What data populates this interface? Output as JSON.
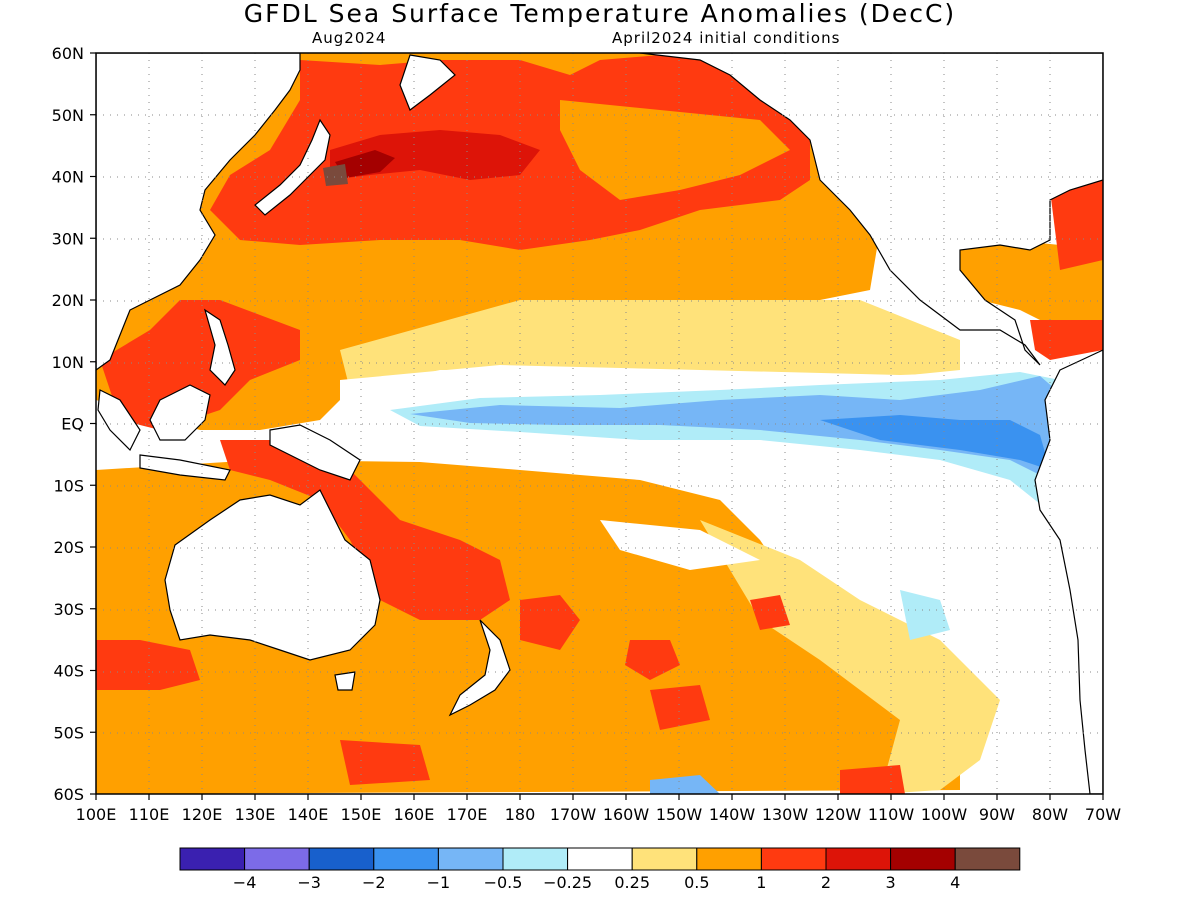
{
  "title": "GFDL Sea Surface Temperature Anomalies (DecC)",
  "subtitle_left": "Aug2024",
  "subtitle_right": "April2024 initial conditions",
  "lat_labels": [
    "60N",
    "50N",
    "40N",
    "30N",
    "20N",
    "10N",
    "EQ",
    "10S",
    "20S",
    "30S",
    "40S",
    "50S",
    "60S"
  ],
  "lon_labels": [
    "100E",
    "110E",
    "120E",
    "130E",
    "140E",
    "150E",
    "160E",
    "170E",
    "180",
    "170W",
    "160W",
    "150W",
    "140W",
    "130W",
    "120W",
    "110W",
    "100W",
    "90W",
    "80W",
    "70W"
  ],
  "colorbar": {
    "colors": [
      "#3a20b0",
      "#7c6be8",
      "#1860cc",
      "#3a92f0",
      "#76b6f6",
      "#b0ecf8",
      "#ffffff",
      "#ffe27a",
      "#ffa000",
      "#ff3a10",
      "#dd1408",
      "#a40000",
      "#7a4a3c"
    ],
    "labels": [
      "−4",
      "−3",
      "−2",
      "−1",
      "−0.5",
      "−0.25",
      "0.25",
      "0.5",
      "1",
      "2",
      "3",
      "4"
    ]
  },
  "legend_levels": {
    "c_neg05": "#76b6f6",
    "c_neg025": "#b0ecf8",
    "c_pos025": "#ffe27a",
    "c_pos05": "#ffa000",
    "c_pos1": "#ff3a10",
    "c_pos2": "#dd1408",
    "c_pos3": "#a40000",
    "c_pos4": "#7a4a3c",
    "c_neg1": "#3a92f0"
  }
}
